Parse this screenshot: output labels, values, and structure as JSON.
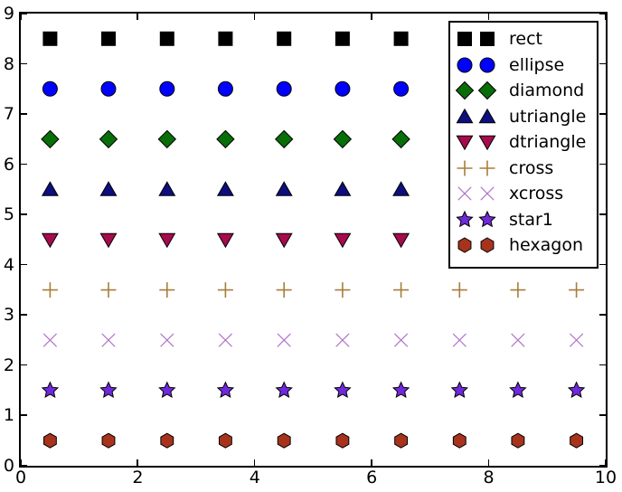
{
  "figure": {
    "background": "#ffffff",
    "plot_border_color": "#000000"
  },
  "chart_data": {
    "type": "scatter",
    "title": "",
    "xlabel": "",
    "ylabel": "",
    "xlim": [
      0,
      10
    ],
    "ylim": [
      0,
      9
    ],
    "xticks": [
      0,
      2,
      4,
      6,
      8,
      10
    ],
    "yticks": [
      0,
      1,
      2,
      3,
      4,
      5,
      6,
      7,
      8,
      9
    ],
    "grid": false,
    "tick_direction": "in",
    "legend_position": "upper right",
    "x": [
      0.5,
      1.5,
      2.5,
      3.5,
      4.5,
      5.5,
      6.5,
      7.5,
      8.5,
      9.5
    ],
    "series": [
      {
        "name": "rect",
        "marker": "rect",
        "color": "#000000",
        "edge": "#000000",
        "y": 8.5
      },
      {
        "name": "ellipse",
        "marker": "ellipse",
        "color": "#0000ff",
        "edge": "#000000",
        "y": 7.5
      },
      {
        "name": "diamond",
        "marker": "diamond",
        "color": "#086e08",
        "edge": "#000000",
        "y": 6.5
      },
      {
        "name": "utriangle",
        "marker": "utriangle",
        "color": "#0e0e7e",
        "edge": "#000000",
        "y": 5.5
      },
      {
        "name": "dtriangle",
        "marker": "dtriangle",
        "color": "#a60b4e",
        "edge": "#000000",
        "y": 4.5
      },
      {
        "name": "cross",
        "marker": "cross",
        "color": "#a87d3c",
        "edge": "none",
        "y": 3.5
      },
      {
        "name": "xcross",
        "marker": "xcross",
        "color": "#b374c9",
        "edge": "none",
        "y": 2.5
      },
      {
        "name": "star1",
        "marker": "star1",
        "color": "#6f2ada",
        "edge": "#000000",
        "y": 1.5
      },
      {
        "name": "hexagon",
        "marker": "hexagon",
        "color": "#a8331c",
        "edge": "#000000",
        "y": 0.5
      }
    ]
  }
}
